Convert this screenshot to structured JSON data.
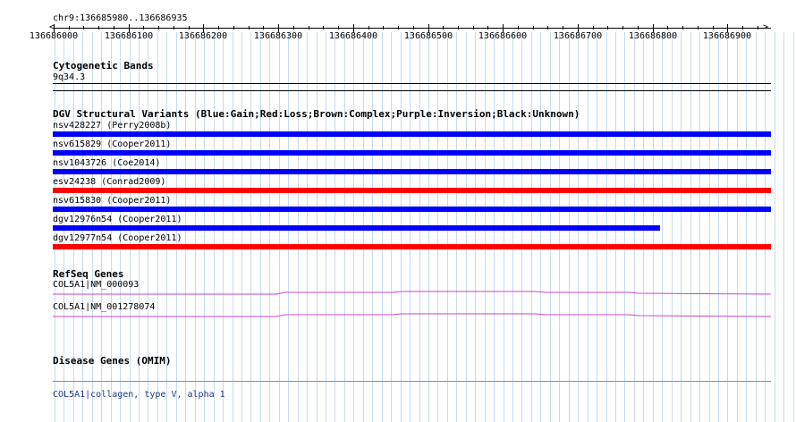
{
  "ruler": {
    "position_label": "chr9:136685980..136686935",
    "tick_labels": [
      "136686000",
      "136686100",
      "136686200",
      "136686300",
      "136686400",
      "136686500",
      "136686600",
      "136686700",
      "136686800",
      "136686900"
    ]
  },
  "cyto": {
    "title": "Cytogenetic Bands",
    "band": "9q34.3"
  },
  "dgv": {
    "title": "DGV Structural Variants (Blue:Gain;Red:Loss;Brown:Complex;Purple:Inversion;Black:Unknown)",
    "colors": {
      "gain": "#0000ff",
      "loss": "#ff0000"
    },
    "variants": [
      {
        "label": "nsv428227 (Perry2008b)",
        "type": "gain"
      },
      {
        "label": "nsv615829 (Cooper2011)",
        "type": "gain"
      },
      {
        "label": "nsv1043726 (Coe2014)",
        "type": "gain"
      },
      {
        "label": "esv24238 (Conrad2009)",
        "type": "loss"
      },
      {
        "label": "nsv615830 (Cooper2011)",
        "type": "gain"
      },
      {
        "label": "dgv12976n54 (Cooper2011)",
        "type": "gain"
      },
      {
        "label": "dgv12977n54 (Cooper2011)",
        "type": "loss"
      }
    ]
  },
  "refseq": {
    "title": "RefSeq Genes",
    "color": "#cc44cc",
    "genes": [
      {
        "label": "COL5A1|NM_000093"
      },
      {
        "label": "COL5A1|NM_001278074"
      }
    ]
  },
  "omim": {
    "title": "Disease Genes (OMIM)",
    "color": "#e07050",
    "link_label": "COL5A1|collagen, type V, alpha 1"
  }
}
